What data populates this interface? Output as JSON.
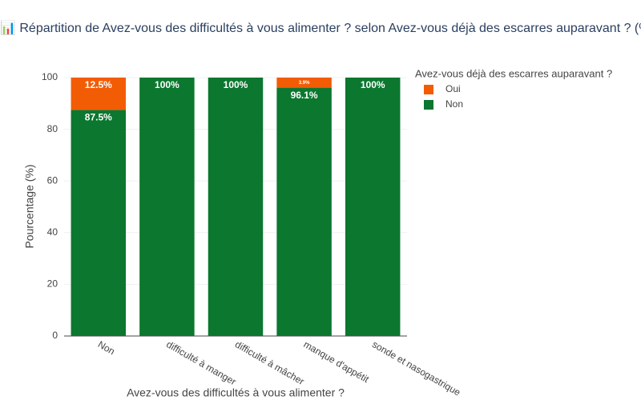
{
  "chart_data": {
    "type": "stacked-bar",
    "title": "📊 Répartition de Avez-vous des difficultés à vous alimenter ? selon Avez-vous déjà des escarres auparavant ? (%",
    "x_label": "Avez-vous des difficultés à vous alimenter ?",
    "y_label": "Pourcentage (%)",
    "legend_title": "Avez-vous déjà des escarres auparavant ?",
    "categories": [
      "Non",
      "difficulté à manger",
      "difficulté à mâcher",
      "manque d'appétit",
      "sonde et nasogastrique"
    ],
    "series": [
      {
        "name": "Oui",
        "color": "#f25c05",
        "values": [
          12.5,
          0,
          0,
          3.9,
          0
        ],
        "value_labels": [
          "12.5%",
          null,
          null,
          "3.9%",
          null
        ]
      },
      {
        "name": "Non",
        "color": "#0b772f",
        "values": [
          87.5,
          100,
          100,
          96.1,
          100
        ],
        "value_labels": [
          "87.5%",
          "100%",
          "100%",
          "96.1%",
          "100%"
        ]
      }
    ],
    "ylim": [
      0,
      100
    ],
    "yticks": [
      0,
      20,
      40,
      60,
      80,
      100
    ],
    "grid": true
  }
}
